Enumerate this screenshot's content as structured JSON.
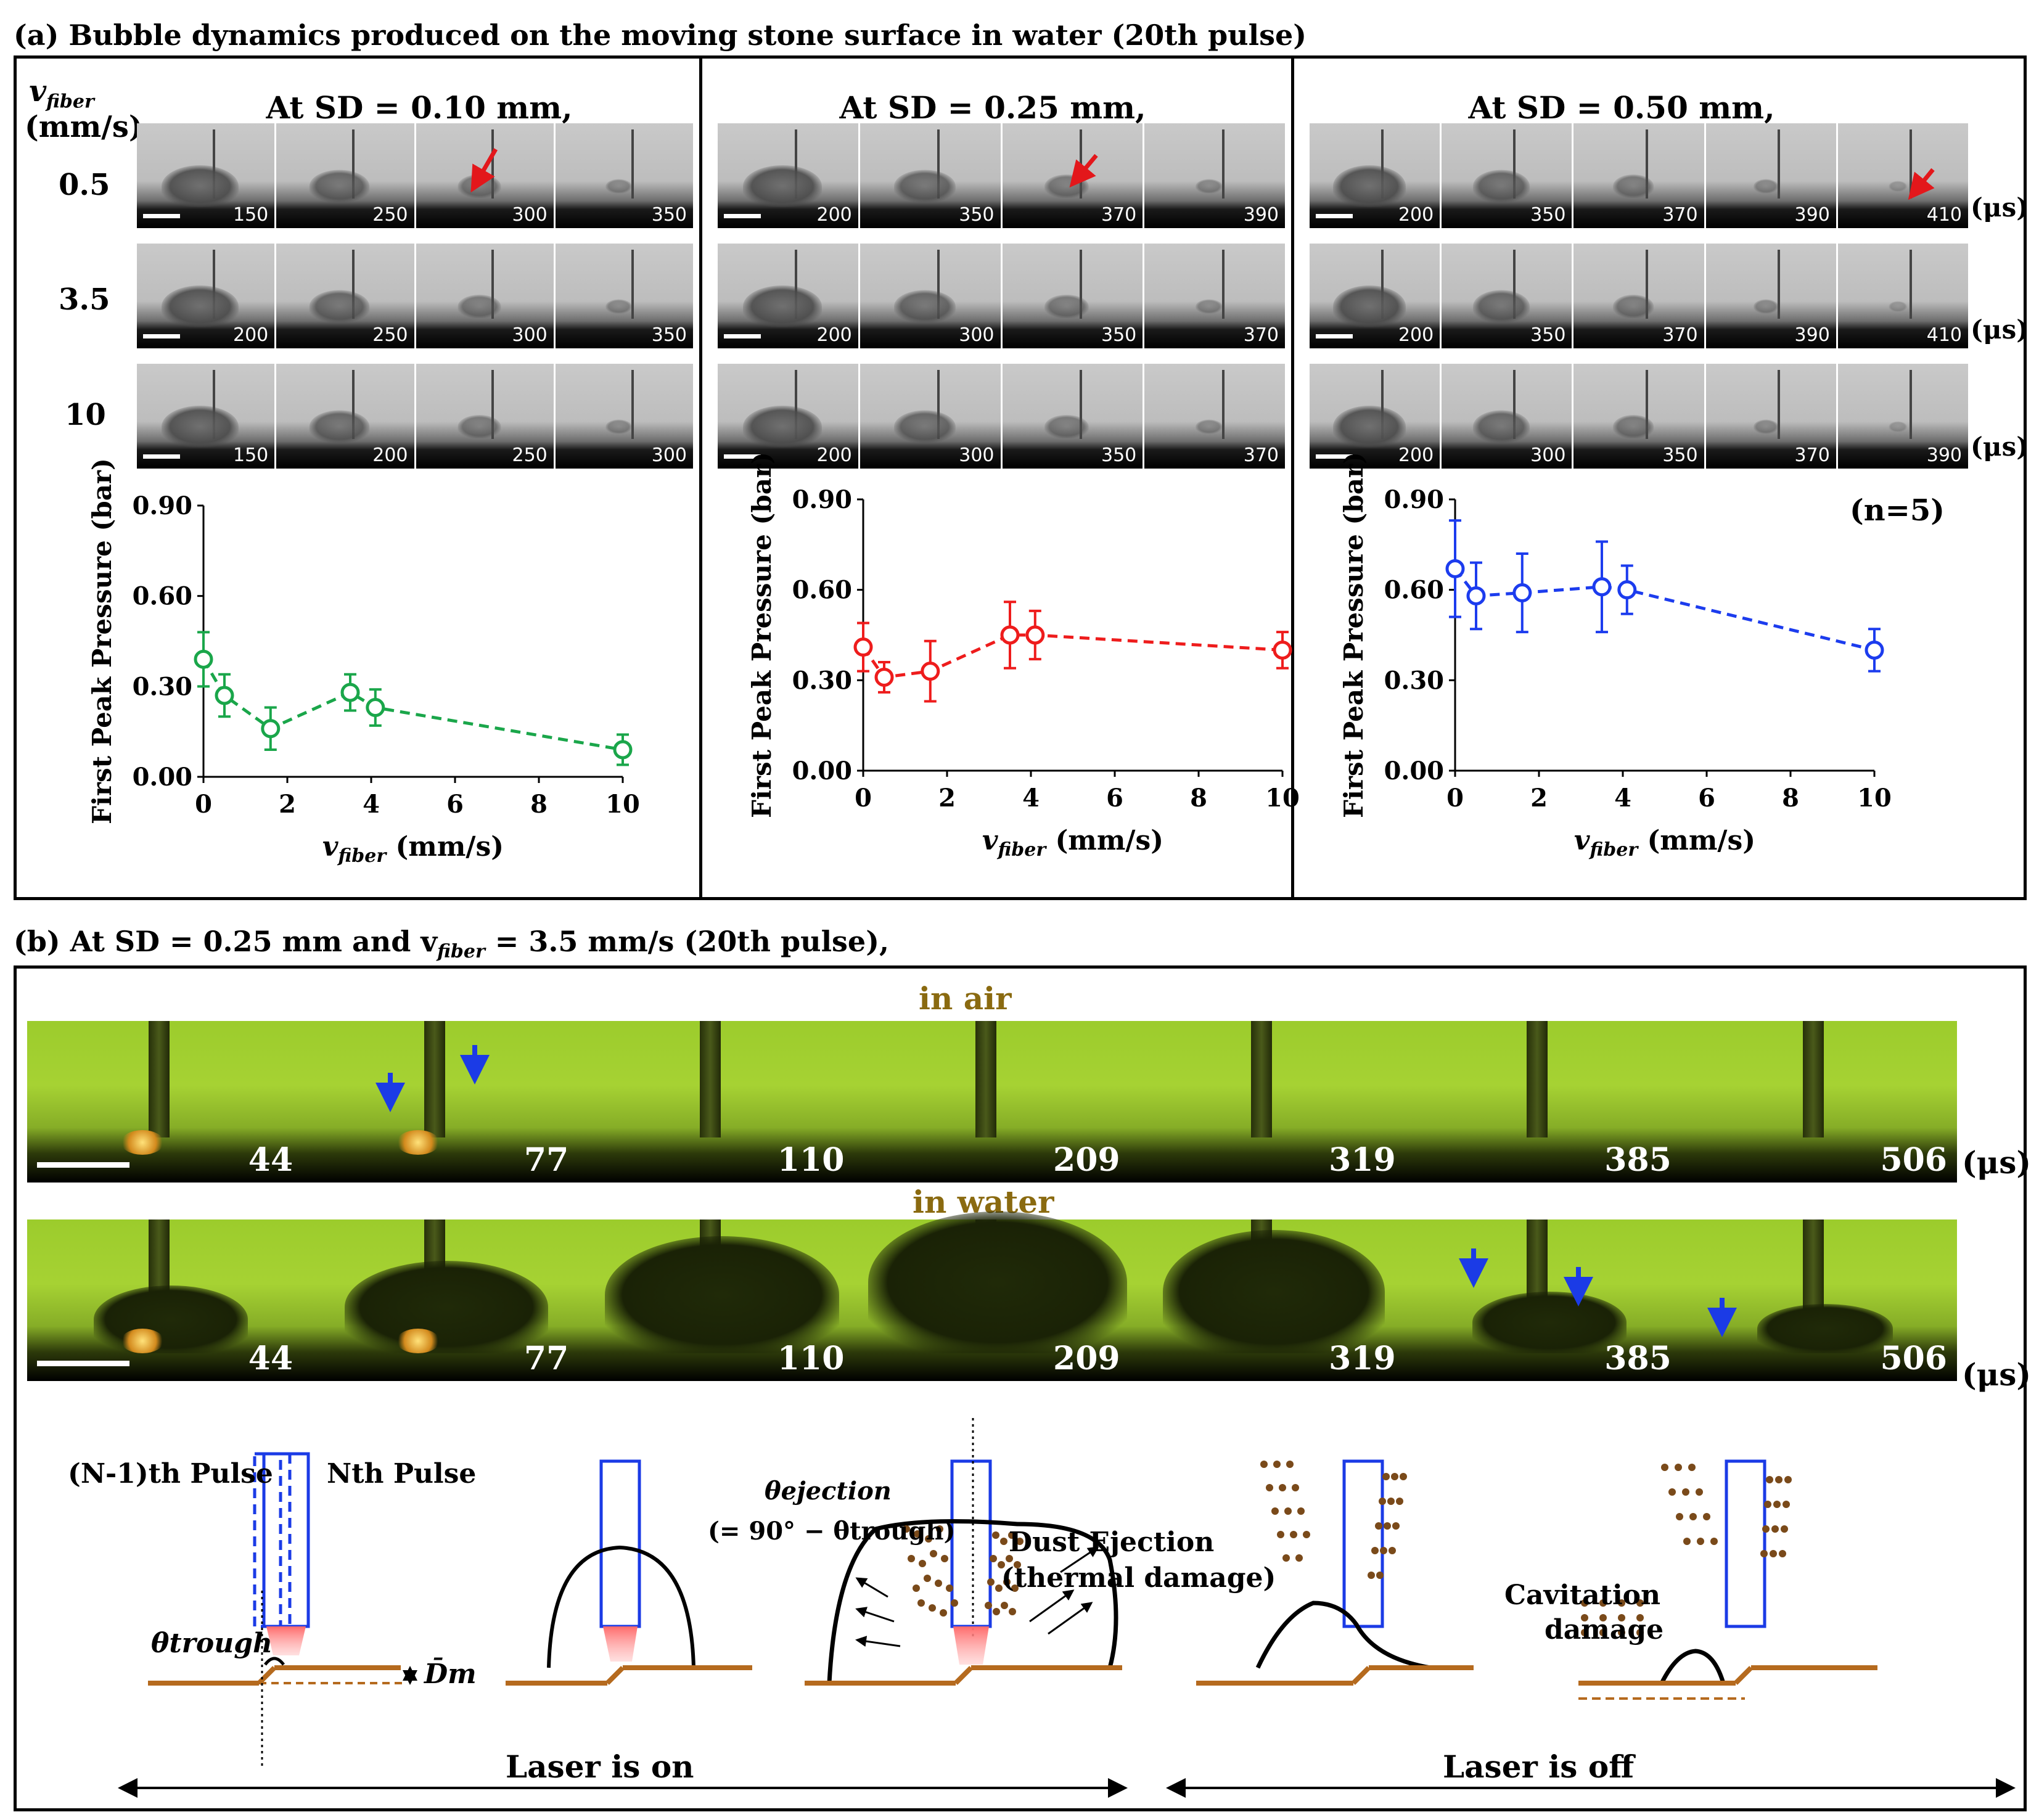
{
  "panel_a": {
    "title": "(a) Bubble dynamics produced on the moving stone surface in water (20th pulse)",
    "vfiber_header_symbol": "v",
    "vfiber_header_sub": "fiber",
    "vfiber_header_unit": "(mm/s)",
    "row_labels": [
      "0.5",
      "3.5",
      "10"
    ],
    "unit_label": "(μs)",
    "columns": [
      {
        "title": "At SD = 0.10 mm,",
        "rows": [
          [
            "150",
            "250",
            "300",
            "350"
          ],
          [
            "200",
            "250",
            "300",
            "350"
          ],
          [
            "150",
            "200",
            "250",
            "300"
          ]
        ]
      },
      {
        "title": "At SD = 0.25 mm,",
        "rows": [
          [
            "200",
            "350",
            "370",
            "390"
          ],
          [
            "200",
            "300",
            "350",
            "370"
          ],
          [
            "200",
            "300",
            "350",
            "370"
          ]
        ]
      },
      {
        "title": "At SD = 0.50 mm,",
        "rows": [
          [
            "200",
            "350",
            "370",
            "390",
            "410"
          ],
          [
            "200",
            "350",
            "370",
            "390",
            "410"
          ],
          [
            "200",
            "300",
            "350",
            "370",
            "390"
          ]
        ]
      }
    ],
    "n_label": "(n=5)"
  },
  "chart_data": [
    {
      "type": "scatter",
      "title": "",
      "xlabel": "v_fiber (mm/s)",
      "ylabel": "First Peak Pressure (bar)",
      "xlim": [
        0,
        10
      ],
      "ylim": [
        0,
        0.9
      ],
      "xticks": [
        "0",
        "2",
        "4",
        "6",
        "8",
        "10"
      ],
      "yticks": [
        "0.00",
        "0.30",
        "0.60",
        "0.90"
      ],
      "color": "#1aa64a",
      "x": [
        0,
        0.5,
        1.6,
        3.5,
        4.1,
        10
      ],
      "y": [
        0.39,
        0.27,
        0.16,
        0.28,
        0.23,
        0.09
      ],
      "err": [
        0.09,
        0.07,
        0.07,
        0.06,
        0.06,
        0.05
      ]
    },
    {
      "type": "scatter",
      "title": "",
      "xlabel": "v_fiber (mm/s)",
      "ylabel": "First Peak Pressure (bar)",
      "xlim": [
        0,
        10
      ],
      "ylim": [
        0,
        0.9
      ],
      "xticks": [
        "0",
        "2",
        "4",
        "6",
        "8",
        "10"
      ],
      "yticks": [
        "0.00",
        "0.30",
        "0.60",
        "0.90"
      ],
      "color": "#ee1c1c",
      "x": [
        0,
        0.5,
        1.6,
        3.5,
        4.1,
        10
      ],
      "y": [
        0.41,
        0.31,
        0.33,
        0.45,
        0.45,
        0.4
      ],
      "err": [
        0.08,
        0.05,
        0.1,
        0.11,
        0.08,
        0.06
      ]
    },
    {
      "type": "scatter",
      "title": "",
      "xlabel": "v_fiber (mm/s)",
      "ylabel": "First Peak Pressure (bar)",
      "xlim": [
        0,
        10
      ],
      "ylim": [
        0,
        0.9
      ],
      "xticks": [
        "0",
        "2",
        "4",
        "6",
        "8",
        "10"
      ],
      "yticks": [
        "0.00",
        "0.30",
        "0.60",
        "0.90"
      ],
      "color": "#1c3cee",
      "x": [
        0,
        0.5,
        1.6,
        3.5,
        4.1,
        10
      ],
      "y": [
        0.67,
        0.58,
        0.59,
        0.61,
        0.6,
        0.4
      ],
      "err": [
        0.16,
        0.11,
        0.13,
        0.15,
        0.08,
        0.07
      ]
    }
  ],
  "panel_b": {
    "title": "(b) At SD = 0.25 mm and v",
    "title_sub": "fiber",
    "title_rest": " = 3.5 mm/s (20th pulse),",
    "air_label": "in air",
    "water_label": "in water",
    "times": [
      "44",
      "77",
      "110",
      "209",
      "319",
      "385",
      "506"
    ],
    "unit_label": "(μs)",
    "diagram": {
      "prev_pulse": "(N-1)th Pulse",
      "this_pulse": "Nth Pulse",
      "theta_trough": "θtrough",
      "dm": "D̄m",
      "theta_ejection": "θejection",
      "theta_formula": "(= 90° − θtrough)",
      "dust_ejection": "Dust Ejection",
      "thermal_damage": "(thermal damage)",
      "cavitation": "Cavitation",
      "damage": "damage",
      "laser_on": "Laser is on",
      "laser_off": "Laser is off"
    }
  }
}
